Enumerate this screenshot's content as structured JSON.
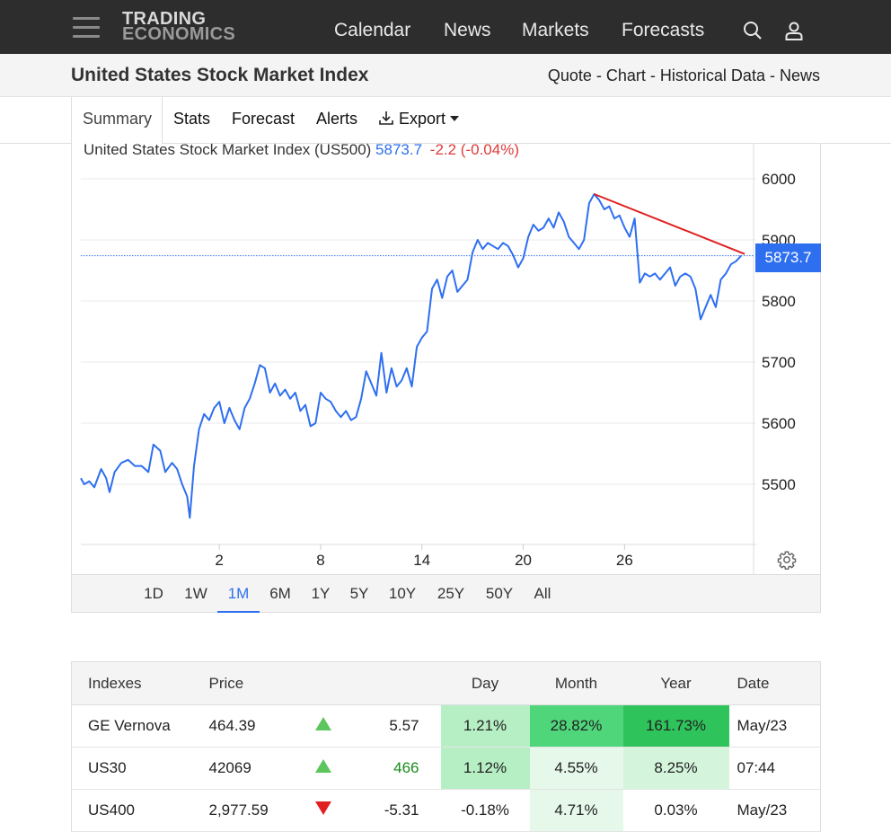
{
  "nav": {
    "logo_line1": "TRADING",
    "logo_line2": "ECONOMICS",
    "links": [
      "Calendar",
      "News",
      "Markets",
      "Forecasts"
    ]
  },
  "title": "United States Stock Market Index",
  "breadcrumbs": [
    "Quote",
    "Chart",
    "Historical Data",
    "News"
  ],
  "tabs": [
    "Summary",
    "Stats",
    "Forecast",
    "Alerts",
    "Export"
  ],
  "chart": {
    "name": "United States Stock Market Index (US500)",
    "last": "5873.7",
    "change": "-2.2 (-0.04%)",
    "price_tag": "5873.7",
    "colors": {
      "line": "#2e6ff0",
      "trend": "#e02020",
      "change": "#e03b3b"
    }
  },
  "chart_data": {
    "type": "line",
    "y_ticks": [
      "5500",
      "5600",
      "5700",
      "5800",
      "5900",
      "6000"
    ],
    "x_ticks": [
      "2",
      "8",
      "14",
      "20",
      "26"
    ],
    "ylim": [
      5400,
      6000
    ],
    "grid": true,
    "series": [
      {
        "values": [
          [
            -6.2,
            5510
          ],
          [
            -6.0,
            5500
          ],
          [
            -5.7,
            5505
          ],
          [
            -5.4,
            5495
          ],
          [
            -5.0,
            5525
          ],
          [
            -4.7,
            5510
          ],
          [
            -4.5,
            5487
          ],
          [
            -4.2,
            5520
          ],
          [
            -3.8,
            5535
          ],
          [
            -3.4,
            5540
          ],
          [
            -3.0,
            5530
          ],
          [
            -2.6,
            5530
          ],
          [
            -2.2,
            5520
          ],
          [
            -1.9,
            5565
          ],
          [
            -1.5,
            5555
          ],
          [
            -1.2,
            5520
          ],
          [
            -0.8,
            5535
          ],
          [
            -0.5,
            5525
          ],
          [
            -0.2,
            5500
          ],
          [
            0.1,
            5480
          ],
          [
            0.25,
            5445
          ],
          [
            0.5,
            5530
          ],
          [
            0.8,
            5590
          ],
          [
            1.1,
            5615
          ],
          [
            1.4,
            5605
          ],
          [
            1.7,
            5625
          ],
          [
            2.0,
            5635
          ],
          [
            2.3,
            5600
          ],
          [
            2.6,
            5625
          ],
          [
            2.9,
            5605
          ],
          [
            3.2,
            5590
          ],
          [
            3.5,
            5625
          ],
          [
            3.8,
            5640
          ],
          [
            4.1,
            5665
          ],
          [
            4.4,
            5695
          ],
          [
            4.7,
            5690
          ],
          [
            5.0,
            5650
          ],
          [
            5.3,
            5665
          ],
          [
            5.6,
            5645
          ],
          [
            5.9,
            5655
          ],
          [
            6.2,
            5640
          ],
          [
            6.5,
            5650
          ],
          [
            6.8,
            5620
          ],
          [
            7.1,
            5630
          ],
          [
            7.4,
            5595
          ],
          [
            7.7,
            5600
          ],
          [
            8.0,
            5650
          ],
          [
            8.3,
            5640
          ],
          [
            8.6,
            5635
          ],
          [
            8.9,
            5620
          ],
          [
            9.2,
            5610
          ],
          [
            9.5,
            5620
          ],
          [
            9.8,
            5605
          ],
          [
            10.1,
            5610
          ],
          [
            10.4,
            5640
          ],
          [
            10.7,
            5685
          ],
          [
            11.0,
            5665
          ],
          [
            11.3,
            5645
          ],
          [
            11.6,
            5715
          ],
          [
            11.9,
            5650
          ],
          [
            12.2,
            5690
          ],
          [
            12.5,
            5660
          ],
          [
            12.8,
            5670
          ],
          [
            13.1,
            5690
          ],
          [
            13.4,
            5660
          ],
          [
            13.7,
            5725
          ],
          [
            14.0,
            5740
          ],
          [
            14.3,
            5750
          ],
          [
            14.6,
            5820
          ],
          [
            14.9,
            5835
          ],
          [
            15.2,
            5805
          ],
          [
            15.5,
            5840
          ],
          [
            15.8,
            5850
          ],
          [
            16.1,
            5815
          ],
          [
            16.4,
            5825
          ],
          [
            16.7,
            5835
          ],
          [
            17.0,
            5880
          ],
          [
            17.3,
            5900
          ],
          [
            17.6,
            5885
          ],
          [
            17.9,
            5895
          ],
          [
            18.2,
            5890
          ],
          [
            18.5,
            5885
          ],
          [
            18.8,
            5895
          ],
          [
            19.1,
            5890
          ],
          [
            19.4,
            5875
          ],
          [
            19.7,
            5855
          ],
          [
            20.0,
            5870
          ],
          [
            20.3,
            5905
          ],
          [
            20.6,
            5925
          ],
          [
            20.9,
            5915
          ],
          [
            21.2,
            5920
          ],
          [
            21.5,
            5935
          ],
          [
            21.8,
            5920
          ],
          [
            22.1,
            5945
          ],
          [
            22.4,
            5930
          ],
          [
            22.7,
            5905
          ],
          [
            23.0,
            5895
          ],
          [
            23.3,
            5885
          ],
          [
            23.6,
            5900
          ],
          [
            23.9,
            5960
          ],
          [
            24.2,
            5975
          ],
          [
            24.5,
            5965
          ],
          [
            24.8,
            5950
          ],
          [
            25.1,
            5955
          ],
          [
            25.4,
            5935
          ],
          [
            25.7,
            5940
          ],
          [
            26.0,
            5920
          ],
          [
            26.3,
            5905
          ],
          [
            26.6,
            5935
          ],
          [
            26.9,
            5830
          ],
          [
            27.2,
            5845
          ],
          [
            27.5,
            5840
          ],
          [
            27.8,
            5845
          ],
          [
            28.1,
            5835
          ],
          [
            28.4,
            5845
          ],
          [
            28.7,
            5855
          ],
          [
            29.0,
            5825
          ],
          [
            29.3,
            5840
          ],
          [
            29.6,
            5845
          ],
          [
            29.9,
            5840
          ],
          [
            30.2,
            5820
          ],
          [
            30.5,
            5770
          ],
          [
            30.8,
            5790
          ],
          [
            31.1,
            5810
          ],
          [
            31.4,
            5790
          ],
          [
            31.7,
            5835
          ],
          [
            32.0,
            5845
          ],
          [
            32.3,
            5860
          ],
          [
            32.6,
            5865
          ],
          [
            32.9,
            5874
          ]
        ]
      }
    ]
  },
  "ranges": [
    "1D",
    "1W",
    "1M",
    "6M",
    "1Y",
    "5Y",
    "10Y",
    "25Y",
    "50Y",
    "All"
  ],
  "active_range": "1M",
  "table": {
    "headers": [
      "Indexes",
      "Price",
      "",
      "",
      "Day",
      "Month",
      "Year",
      "Date"
    ],
    "rows": [
      {
        "name": "GE Vernova",
        "price": "464.39",
        "dir": "up",
        "chg": "5.57",
        "day": "1.21%",
        "month": "28.82%",
        "year": "161.73%",
        "date": "May/23",
        "chg_color": "#222",
        "day_bg": "#b7efc5",
        "month_bg": "#4fd67a",
        "year_bg": "#2fc45b"
      },
      {
        "name": "US30",
        "price": "42069",
        "dir": "up",
        "chg": "466",
        "day": "1.12%",
        "month": "4.55%",
        "year": "8.25%",
        "date": "07:44",
        "chg_color": "#1a8a1a",
        "day_bg": "#b7efc5",
        "month_bg": "#e6f8ea",
        "year_bg": "#d4f4dc"
      },
      {
        "name": "US400",
        "price": "2,977.59",
        "dir": "down",
        "chg": "-5.31",
        "day": "-0.18%",
        "month": "4.71%",
        "year": "0.03%",
        "date": "May/23",
        "chg_color": "#222",
        "day_bg": "#ffffff",
        "month_bg": "#e6f8ea",
        "year_bg": "#ffffff"
      }
    ]
  }
}
